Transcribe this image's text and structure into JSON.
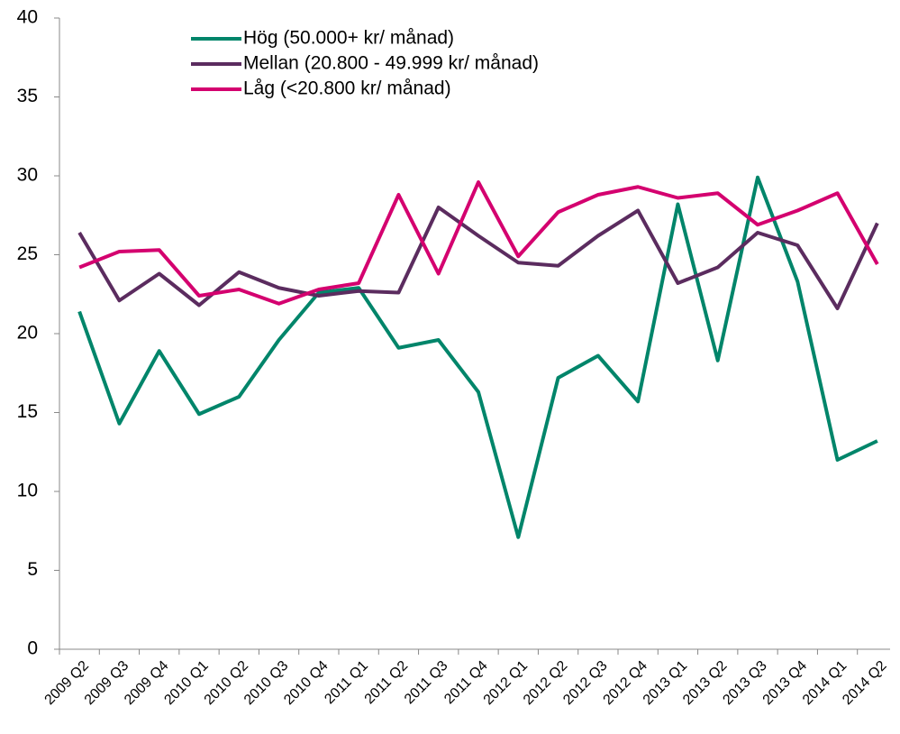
{
  "chart_data": {
    "type": "line",
    "categories": [
      "2009 Q2",
      "2009 Q3",
      "2009 Q4",
      "2010 Q1",
      "2010 Q2",
      "2010 Q3",
      "2010 Q4",
      "2011 Q1",
      "2011 Q2",
      "2011 Q3",
      "2011 Q4",
      "2012 Q1",
      "2012 Q2",
      "2012 Q3",
      "2012 Q4",
      "2013 Q1",
      "2013 Q2",
      "2013 Q3",
      "2013 Q4",
      "2014 Q1",
      "2014 Q2"
    ],
    "series": [
      {
        "name": "Hög (50.000+ kr/ månad)",
        "color": "#00856a",
        "values": [
          21.4,
          14.3,
          18.9,
          14.9,
          16.0,
          19.6,
          22.6,
          22.9,
          19.1,
          19.6,
          16.3,
          7.1,
          17.2,
          18.6,
          15.7,
          28.2,
          18.3,
          29.9,
          23.3,
          12.0,
          13.2
        ]
      },
      {
        "name": "Mellan (20.800 - 49.999 kr/ månad)",
        "color": "#5b2c5f",
        "values": [
          26.4,
          22.1,
          23.8,
          21.8,
          23.9,
          22.9,
          22.4,
          22.7,
          22.6,
          28.0,
          26.2,
          24.5,
          24.3,
          26.2,
          27.8,
          23.2,
          24.2,
          26.4,
          25.6,
          21.6,
          27.0
        ]
      },
      {
        "name": "Låg (<20.800 kr/ månad)",
        "color": "#d4006f",
        "values": [
          24.2,
          25.2,
          25.3,
          22.4,
          22.8,
          21.9,
          22.8,
          23.2,
          28.8,
          23.8,
          29.6,
          24.9,
          27.7,
          28.8,
          29.3,
          28.6,
          28.9,
          26.9,
          27.8,
          28.9,
          24.4
        ]
      }
    ],
    "ylim": [
      0,
      40
    ],
    "yticks": [
      0,
      5,
      10,
      15,
      20,
      25,
      30,
      35,
      40
    ],
    "grid": false,
    "legend": "top-left"
  }
}
